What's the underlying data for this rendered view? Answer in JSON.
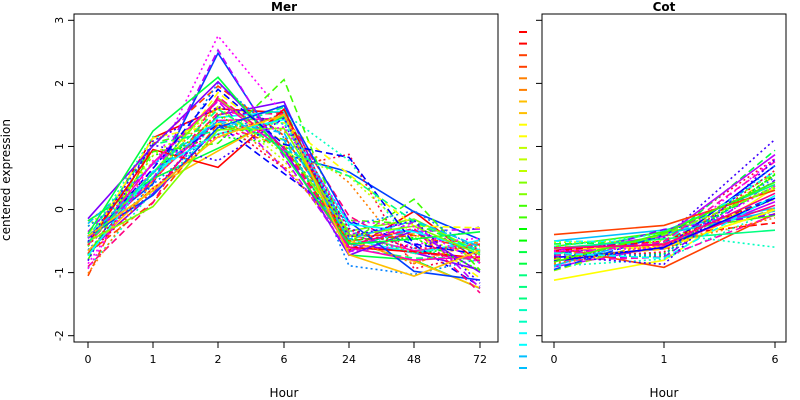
{
  "chart_data": {
    "type": "line",
    "ylabel": "centered expression",
    "panels": [
      {
        "title": "Mer",
        "xlabel": "Hour",
        "x": [
          "0",
          "1",
          "2",
          "6",
          "24",
          "48",
          "72"
        ],
        "ylim": [
          -2.1,
          3.1
        ],
        "yticks": [
          -2,
          -1,
          0,
          1,
          2,
          3
        ],
        "series_count": 48
      },
      {
        "title": "Cot",
        "xlabel": "Hour",
        "x": [
          "0",
          "1",
          "6"
        ],
        "ylim": [
          -2.1,
          3.1
        ],
        "yticks": [],
        "series_count": 48
      }
    ],
    "line_styles": [
      "solid",
      "dashed",
      "dotted"
    ],
    "palette": [
      "#ff0000",
      "#ff4000",
      "#ff8000",
      "#ffbf00",
      "#ffff00",
      "#bfff00",
      "#80ff00",
      "#40ff00",
      "#00ff00",
      "#00ff40",
      "#00ff80",
      "#00ffbf",
      "#00ffff",
      "#00bfff",
      "#0080ff",
      "#0040ff",
      "#0000ff",
      "#4000ff",
      "#8000ff",
      "#bf00ff",
      "#ff00ff",
      "#ff00bf",
      "#ff0080",
      "#ff0040"
    ],
    "legend_keys": 30,
    "grid": false
  }
}
